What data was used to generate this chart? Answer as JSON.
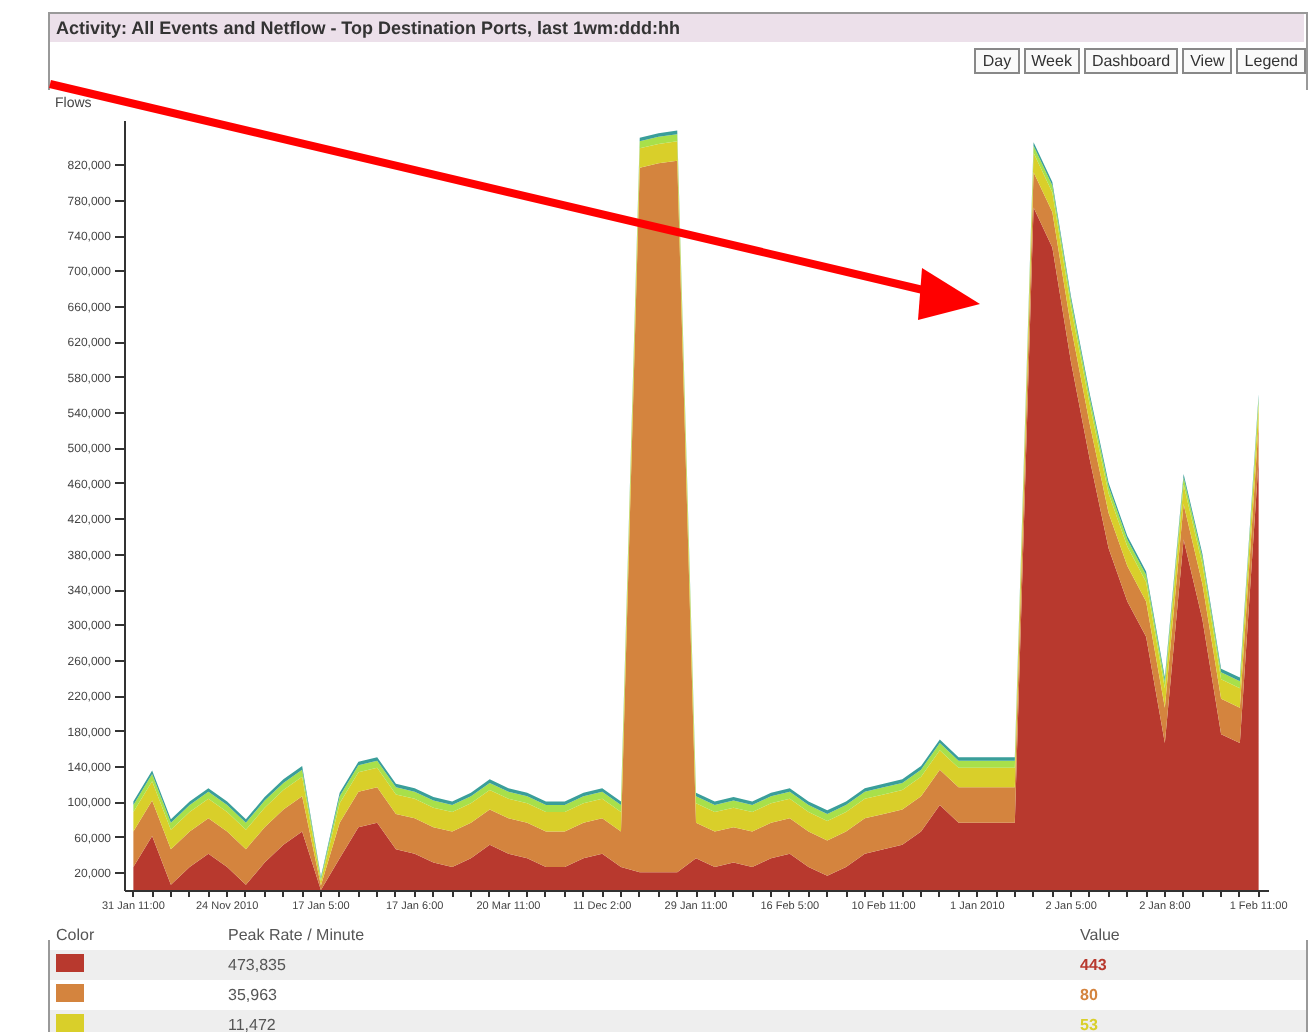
{
  "chart_data": {
    "type": "area",
    "stacked": true,
    "title": "Activity: All Events and Netflow - Top Destination Ports, last 1wm:ddd:hh",
    "ylabel": "Flows",
    "categories": [
      "31 Jan 11:00",
      null,
      null,
      null,
      null,
      "24 Nov 2010",
      null,
      null,
      null,
      null,
      "17 Jan 5:00",
      null,
      null,
      null,
      null,
      "17 Jan 6:00",
      null,
      null,
      null,
      null,
      "20 Mar 11:00",
      null,
      null,
      null,
      null,
      "11 Dec 2:00",
      null,
      null,
      null,
      null,
      "29 Jan 11:00",
      null,
      null,
      null,
      null,
      "16 Feb 5:00",
      null,
      null,
      null,
      null,
      "10 Feb 11:00",
      null,
      null,
      null,
      null,
      "1 Jan 2010",
      null,
      null,
      null,
      null,
      "2 Jan 5:00",
      null,
      null,
      null,
      null,
      "2 Jan 8:00",
      null,
      null,
      null,
      null,
      "1 Feb 11:00"
    ],
    "series": [
      {
        "name": "443",
        "color": "#b8392e",
        "values": [
          26000,
          61000,
          6000,
          26000,
          41000,
          26000,
          6000,
          31000,
          51000,
          66000,
          0,
          36000,
          71000,
          76000,
          46000,
          41000,
          31000,
          26000,
          36000,
          51000,
          41000,
          36000,
          26000,
          26000,
          36000,
          41000,
          26000,
          20000,
          20000,
          20000,
          36000,
          26000,
          31000,
          26000,
          36000,
          41000,
          26000,
          16000,
          26000,
          41000,
          46000,
          51000,
          66000,
          96000,
          76000,
          76000,
          76000,
          76000,
          771000,
          726000,
          596000,
          486000,
          386000,
          326000,
          286000,
          166000,
          396000,
          306000,
          176000,
          166000,
          486000
        ]
      },
      {
        "name": "80",
        "color": "#d4843e",
        "values": [
          40000,
          40000,
          40000,
          40000,
          40000,
          40000,
          40000,
          40000,
          40000,
          40000,
          5000,
          40000,
          40000,
          40000,
          40000,
          40000,
          40000,
          40000,
          40000,
          40000,
          40000,
          40000,
          40000,
          40000,
          40000,
          40000,
          40000,
          796000,
          801000,
          804000,
          40000,
          40000,
          40000,
          40000,
          40000,
          40000,
          40000,
          40000,
          40000,
          40000,
          40000,
          40000,
          40000,
          40000,
          40000,
          40000,
          40000,
          40000,
          40000,
          40000,
          40000,
          40000,
          40000,
          40000,
          40000,
          40000,
          40000,
          40000,
          40000,
          40000,
          40000
        ]
      },
      {
        "name": "53",
        "color": "#d9cf2a",
        "values": [
          22000,
          22000,
          22000,
          22000,
          22000,
          22000,
          22000,
          22000,
          22000,
          22000,
          5000,
          22000,
          22000,
          22000,
          22000,
          22000,
          22000,
          22000,
          22000,
          22000,
          22000,
          22000,
          22000,
          22000,
          22000,
          22000,
          22000,
          22000,
          22000,
          22000,
          22000,
          22000,
          22000,
          22000,
          22000,
          22000,
          22000,
          22000,
          22000,
          22000,
          22000,
          22000,
          22000,
          22000,
          22000,
          22000,
          22000,
          22000,
          22000,
          22000,
          22000,
          22000,
          22000,
          22000,
          22000,
          22000,
          22000,
          22000,
          22000,
          22000,
          22000
        ]
      },
      {
        "color": "#a8e04a",
        "values": [
          8000,
          8000,
          8000,
          8000,
          8000,
          8000,
          8000,
          8000,
          8000,
          8000,
          3000,
          8000,
          8000,
          8000,
          8000,
          8000,
          8000,
          8000,
          8000,
          8000,
          8000,
          8000,
          8000,
          8000,
          8000,
          8000,
          8000,
          8000,
          8000,
          8000,
          8000,
          8000,
          8000,
          8000,
          8000,
          8000,
          8000,
          8000,
          8000,
          8000,
          8000,
          8000,
          8000,
          8000,
          8000,
          8000,
          8000,
          8000,
          8000,
          8000,
          8000,
          8000,
          8000,
          8000,
          8000,
          8000,
          8000,
          8000,
          8000,
          8000,
          8000
        ]
      },
      {
        "color": "#3a9e9a",
        "values": [
          4000,
          4000,
          4000,
          4000,
          4000,
          4000,
          4000,
          4000,
          4000,
          4000,
          2000,
          4000,
          4000,
          4000,
          4000,
          4000,
          4000,
          4000,
          4000,
          4000,
          4000,
          4000,
          4000,
          4000,
          4000,
          4000,
          4000,
          4000,
          4000,
          4000,
          4000,
          4000,
          4000,
          4000,
          4000,
          4000,
          4000,
          4000,
          4000,
          4000,
          4000,
          4000,
          4000,
          4000,
          4000,
          4000,
          4000,
          4000,
          4000,
          4000,
          4000,
          4000,
          4000,
          4000,
          4000,
          4000,
          4000,
          4000,
          4000,
          4000,
          4000
        ]
      }
    ],
    "ylim": [
      0,
      870000
    ],
    "yticks": [
      {
        "value": 20000,
        "label": "20,000"
      },
      {
        "value": 60000,
        "label": "60,000"
      },
      {
        "value": 100000,
        "label": "100,000"
      },
      {
        "value": 140000,
        "label": "140,000"
      },
      {
        "value": 180000,
        "label": "180,000"
      },
      {
        "value": 220000,
        "label": "220,000"
      },
      {
        "value": 260000,
        "label": "260,000"
      },
      {
        "value": 300000,
        "label": "300,000"
      },
      {
        "value": 340000,
        "label": "340,000"
      },
      {
        "value": 380000,
        "label": "380,000"
      },
      {
        "value": 420000,
        "label": "420,000"
      },
      {
        "value": 460000,
        "label": "460,000"
      },
      {
        "value": 500000,
        "label": "500,000"
      },
      {
        "value": 540000,
        "label": "540,000"
      },
      {
        "value": 580000,
        "label": "580,000"
      },
      {
        "value": 620000,
        "label": "620,000"
      },
      {
        "value": 660000,
        "label": "660,000"
      },
      {
        "value": 700000,
        "label": "700,000"
      },
      {
        "value": 740000,
        "label": "740,000"
      },
      {
        "value": 780000,
        "label": "780,000"
      },
      {
        "value": 820000,
        "label": "820,000"
      }
    ],
    "legend": "bottom",
    "annotations": [
      "Day",
      "Week",
      "Dashboard",
      "View",
      "Legend",
      "Color",
      "Peak Rate / Minute",
      "Value",
      "473,835",
      "35,963",
      "11,472"
    ]
  }
}
